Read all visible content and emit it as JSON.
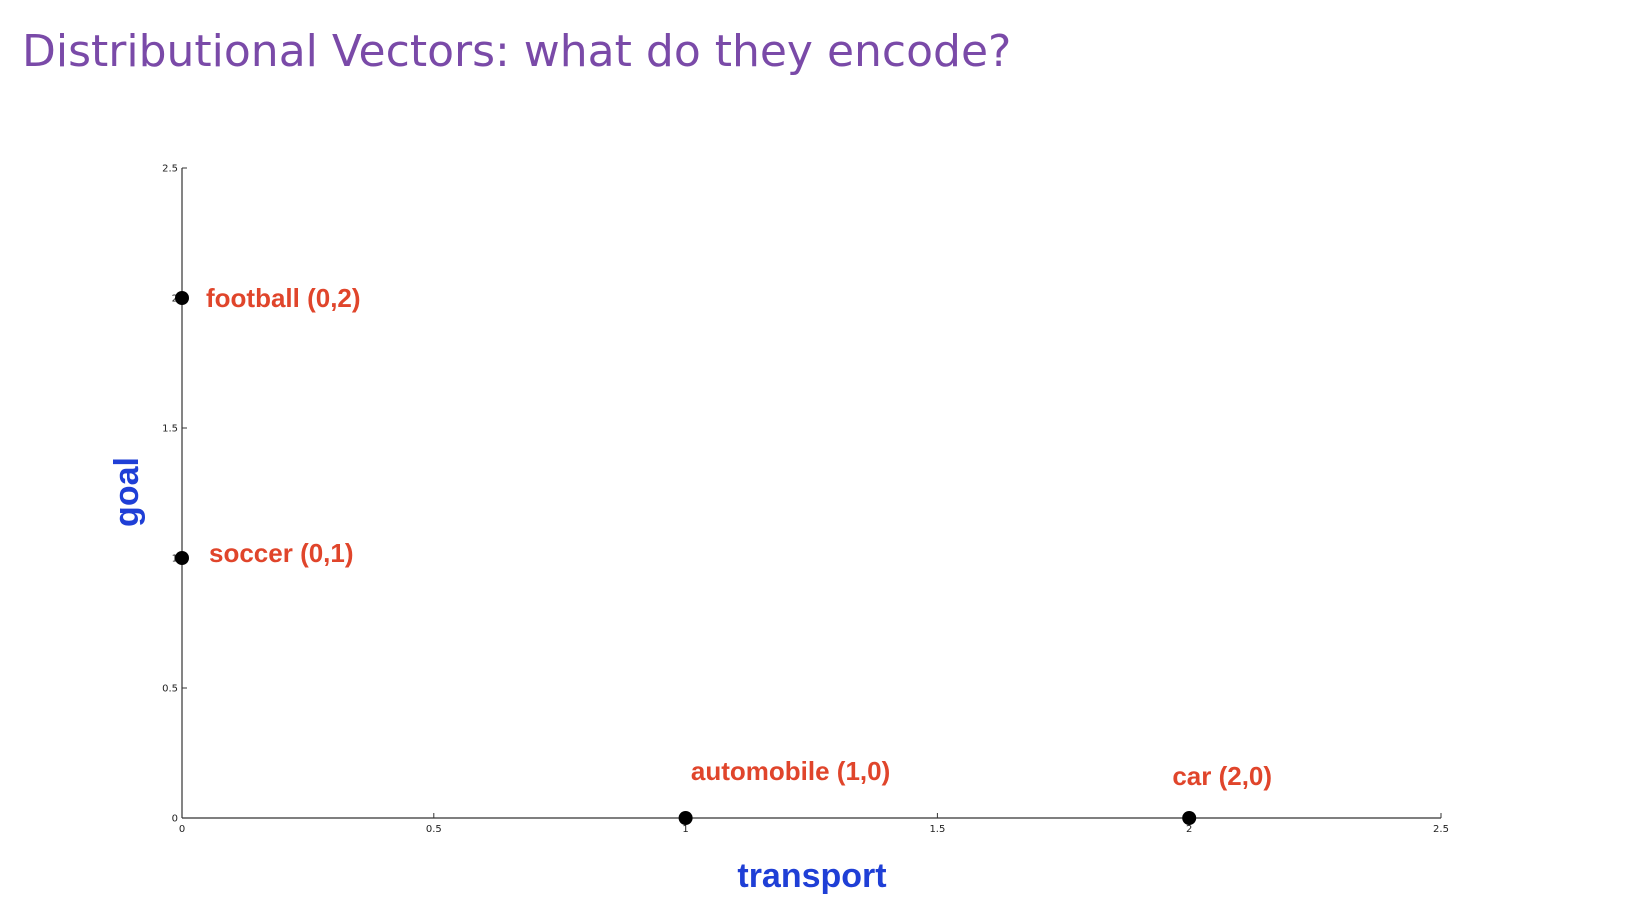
{
  "slide": {
    "title": "Distributional Vectors: what do they encode?"
  },
  "colors": {
    "title": "#7a4aa8",
    "axis_title": "#1f3fd6",
    "point_label": "#e0452b",
    "point": "#000000",
    "axis": "#333333"
  },
  "chart_data": {
    "type": "scatter",
    "title": "",
    "xlabel": "transport",
    "ylabel": "goal",
    "xlim": [
      0,
      2.5
    ],
    "ylim": [
      0,
      2.5
    ],
    "xticks": [
      0,
      0.5,
      1,
      1.5,
      2,
      2.5
    ],
    "yticks": [
      0,
      0.5,
      1,
      1.5,
      2,
      2.5
    ],
    "grid": false,
    "points": [
      {
        "label": "football (0,2)",
        "x": 0,
        "y": 2
      },
      {
        "label": "soccer (0,1)",
        "x": 0,
        "y": 1
      },
      {
        "label": "automobile (1,0)",
        "x": 1,
        "y": 0
      },
      {
        "label": "car (2,0)",
        "x": 2,
        "y": 0
      }
    ]
  }
}
